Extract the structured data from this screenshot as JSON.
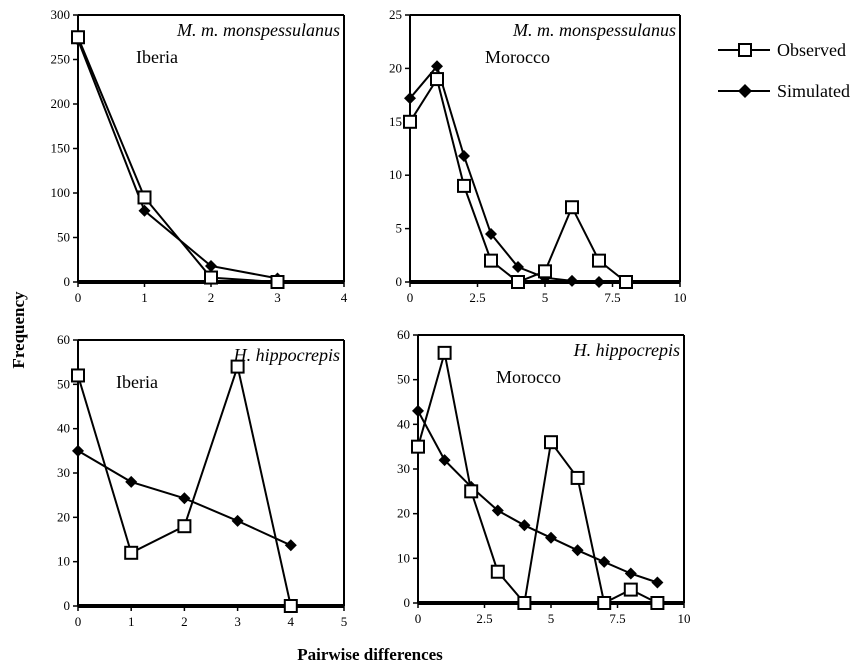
{
  "figure": {
    "ylabel": "Frequency",
    "xlabel": "Pairwise differences",
    "legend": {
      "placement": "top-right",
      "observed": "Observed",
      "simulated": "Simulated"
    }
  },
  "chart_data": [
    {
      "type": "line",
      "panel": "top-left",
      "species": "M. m. monspessulanus",
      "region": "Iberia",
      "xlim": [
        0,
        4
      ],
      "ylim": [
        0,
        300
      ],
      "xticks": [
        0,
        1,
        2,
        3,
        4
      ],
      "yticks": [
        0,
        50,
        100,
        150,
        200,
        250,
        300
      ],
      "grid": false,
      "series": [
        {
          "name": "Observed",
          "marker": "open-square",
          "x": [
            0,
            1,
            2,
            3
          ],
          "values": [
            275,
            95,
            5,
            0
          ]
        },
        {
          "name": "Simulated",
          "marker": "filled-diamond",
          "x": [
            0,
            1,
            2,
            3
          ],
          "values": [
            272,
            80,
            18,
            4
          ]
        }
      ]
    },
    {
      "type": "line",
      "panel": "top-right",
      "species": "M. m. monspessulanus",
      "region": "Morocco",
      "xlim": [
        0,
        10
      ],
      "ylim": [
        0,
        25
      ],
      "xticks": [
        0,
        2.5,
        5,
        7.5,
        10
      ],
      "yticks": [
        0,
        5,
        10,
        15,
        20,
        25
      ],
      "grid": false,
      "series": [
        {
          "name": "Observed",
          "marker": "open-square",
          "x": [
            0,
            1,
            2,
            3,
            4,
            5,
            6,
            7,
            8
          ],
          "values": [
            15,
            19,
            9,
            2,
            0,
            1,
            7,
            2,
            0
          ]
        },
        {
          "name": "Simulated",
          "marker": "filled-diamond",
          "x": [
            0,
            1,
            2,
            3,
            4,
            5,
            6,
            7
          ],
          "values": [
            17.2,
            20.2,
            11.8,
            4.5,
            1.4,
            0.4,
            0.1,
            0.0
          ]
        }
      ]
    },
    {
      "type": "line",
      "panel": "bottom-left",
      "species": "H. hippocrepis",
      "region": "Iberia",
      "xlim": [
        0,
        5
      ],
      "ylim": [
        0,
        60
      ],
      "xticks": [
        0,
        1,
        2,
        3,
        4,
        5
      ],
      "yticks": [
        0,
        10,
        20,
        30,
        40,
        50,
        60
      ],
      "grid": false,
      "series": [
        {
          "name": "Observed",
          "marker": "open-square",
          "x": [
            0,
            1,
            2,
            3,
            4
          ],
          "values": [
            52,
            12,
            18,
            54,
            0
          ]
        },
        {
          "name": "Simulated",
          "marker": "filled-diamond",
          "x": [
            0,
            1,
            2,
            3,
            4
          ],
          "values": [
            35,
            28,
            24.3,
            19.2,
            13.7
          ]
        }
      ]
    },
    {
      "type": "line",
      "panel": "bottom-right",
      "species": "H. hippocrepis",
      "region": "Morocco",
      "xlim": [
        0,
        10
      ],
      "ylim": [
        0,
        60
      ],
      "xticks": [
        0,
        2.5,
        5,
        7.5,
        10
      ],
      "yticks": [
        0,
        10,
        20,
        30,
        40,
        50,
        60
      ],
      "grid": false,
      "series": [
        {
          "name": "Observed",
          "marker": "open-square",
          "x": [
            0,
            1,
            2,
            3,
            4,
            5,
            6,
            7,
            8,
            9
          ],
          "values": [
            35,
            56,
            25,
            7,
            0,
            36,
            28,
            0,
            3,
            0
          ]
        },
        {
          "name": "Simulated",
          "marker": "filled-diamond",
          "x": [
            0,
            1,
            2,
            3,
            4,
            5,
            6,
            7,
            8,
            9
          ],
          "values": [
            43,
            32,
            26,
            20.7,
            17.4,
            14.6,
            11.8,
            9.2,
            6.6,
            4.6
          ]
        }
      ]
    }
  ]
}
